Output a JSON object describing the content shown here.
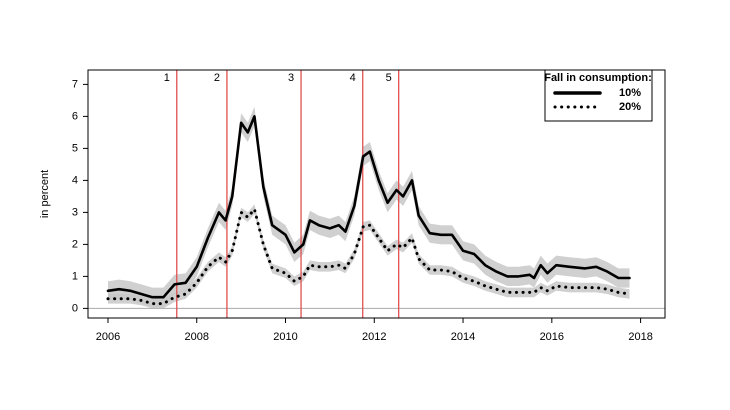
{
  "chart_data": {
    "type": "line",
    "y_label": "in percent",
    "legend_title": "Fall in consumption:",
    "legend": "top-right",
    "x": [
      2006.0,
      2006.25,
      2006.5,
      2006.75,
      2007.0,
      2007.25,
      2007.5,
      2007.75,
      2008.0,
      2008.25,
      2008.5,
      2008.65,
      2008.8,
      2009.0,
      2009.15,
      2009.3,
      2009.5,
      2009.7,
      2010.0,
      2010.2,
      2010.4,
      2010.55,
      2010.75,
      2011.0,
      2011.2,
      2011.35,
      2011.55,
      2011.75,
      2011.9,
      2012.1,
      2012.3,
      2012.5,
      2012.65,
      2012.85,
      2013.0,
      2013.25,
      2013.5,
      2013.75,
      2014.0,
      2014.25,
      2014.5,
      2014.75,
      2015.0,
      2015.25,
      2015.5,
      2015.6,
      2015.75,
      2015.9,
      2016.1,
      2016.4,
      2016.75,
      2017.0,
      2017.25,
      2017.5,
      2017.75
    ],
    "series": [
      {
        "name": "10%",
        "color": "#000000",
        "style": "solid",
        "band_color": "#c8c8c8",
        "ci_halfwidth": 0.3,
        "values": [
          0.55,
          0.6,
          0.55,
          0.45,
          0.35,
          0.35,
          0.75,
          0.8,
          1.3,
          2.2,
          3.0,
          2.75,
          3.5,
          5.8,
          5.5,
          6.0,
          3.8,
          2.6,
          2.3,
          1.75,
          2.0,
          2.75,
          2.6,
          2.5,
          2.6,
          2.4,
          3.2,
          4.75,
          4.9,
          4.0,
          3.3,
          3.7,
          3.5,
          4.0,
          2.9,
          2.35,
          2.3,
          2.3,
          1.8,
          1.7,
          1.35,
          1.15,
          1.0,
          1.0,
          1.05,
          0.95,
          1.35,
          1.1,
          1.35,
          1.3,
          1.25,
          1.3,
          1.15,
          0.95,
          0.95
        ]
      },
      {
        "name": "20%",
        "color": "#000000",
        "style": "dotted",
        "band_color": "#c8c8c8",
        "ci_halfwidth": 0.15,
        "values": [
          0.3,
          0.3,
          0.3,
          0.25,
          0.15,
          0.15,
          0.35,
          0.45,
          0.8,
          1.3,
          1.6,
          1.45,
          1.8,
          3.0,
          2.85,
          3.1,
          2.0,
          1.25,
          1.1,
          0.85,
          1.0,
          1.35,
          1.3,
          1.3,
          1.35,
          1.25,
          1.7,
          2.55,
          2.6,
          2.2,
          1.8,
          2.0,
          1.9,
          2.2,
          1.55,
          1.2,
          1.2,
          1.15,
          0.95,
          0.85,
          0.7,
          0.6,
          0.5,
          0.5,
          0.5,
          0.5,
          0.65,
          0.55,
          0.7,
          0.65,
          0.65,
          0.65,
          0.6,
          0.5,
          0.45
        ]
      }
    ],
    "events": [
      {
        "x": 2007.55,
        "label": "1",
        "color": "#e05050"
      },
      {
        "x": 2008.68,
        "label": "2",
        "color": "#e05050"
      },
      {
        "x": 2010.35,
        "label": "3",
        "color": "#e05050"
      },
      {
        "x": 2011.74,
        "label": "4",
        "color": "#e05050"
      },
      {
        "x": 2012.55,
        "label": "5",
        "color": "#e05050"
      }
    ],
    "xlim": [
      2005.55,
      2018.55
    ],
    "ylim": [
      -0.3,
      7.45
    ],
    "xticks": [
      2006,
      2008,
      2010,
      2012,
      2014,
      2016,
      2018
    ],
    "yticks": [
      0,
      1,
      2,
      3,
      4,
      5,
      6,
      7
    ],
    "zero_line": true
  }
}
